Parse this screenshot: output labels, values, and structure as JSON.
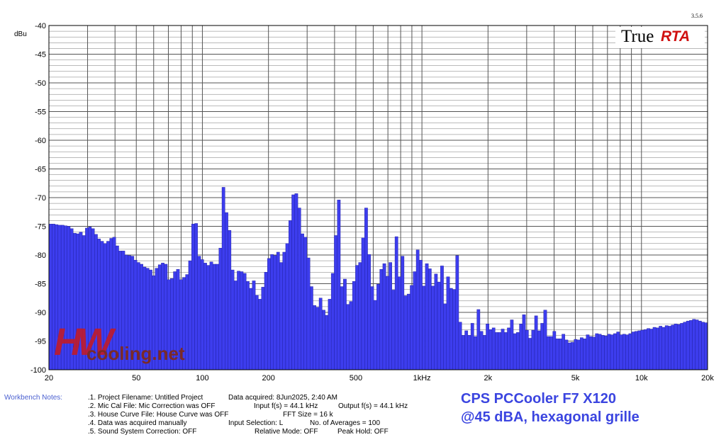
{
  "version": "3.5.6",
  "logo": {
    "part1": "True",
    "part2": "RTA"
  },
  "watermark": {
    "letters": "HW",
    "text": "cooling.net"
  },
  "workbench": {
    "label": "Workbench Notes:",
    "lines": [
      ".1. Project Filename: Untitled Project",
      ".2. Mic Cal File: Mic Correction was OFF",
      ".3. House Curve File: House Curve was OFF",
      ".4. Data was acquired manually",
      ".5. Sound System Correction: OFF"
    ],
    "col2": [
      "Data acquired: 8Jun2025, 2:40 AM",
      "Input f(s) = 44.1 kHz",
      "FFT Size = 16 k",
      "Input Selection: L",
      "Relative Mode:  OFF"
    ],
    "col3": [
      "",
      "Output f(s) = 44.1 kHz",
      "",
      "No. of Averages = 100",
      "Peak Hold:  OFF"
    ]
  },
  "caption": {
    "line1": "CPS PCCooler F7 X120",
    "line2": "@45 dBA, hexagonal grille"
  },
  "chart_data": {
    "type": "bar",
    "ylabel": "dBu",
    "x_scale": "log",
    "xlim": [
      20,
      20000
    ],
    "ylim": [
      -100,
      -40
    ],
    "y_ticks": [
      -40,
      -45,
      -50,
      -55,
      -60,
      -65,
      -70,
      -75,
      -80,
      -85,
      -90,
      -95,
      -100
    ],
    "x_ticks": [
      {
        "v": 20,
        "label": "20"
      },
      {
        "v": 50,
        "label": "50"
      },
      {
        "v": 100,
        "label": "100"
      },
      {
        "v": 200,
        "label": "200"
      },
      {
        "v": 500,
        "label": "500"
      },
      {
        "v": 1000,
        "label": "1kHz"
      },
      {
        "v": 2000,
        "label": "2k"
      },
      {
        "v": 5000,
        "label": "5k"
      },
      {
        "v": 10000,
        "label": "10k"
      },
      {
        "v": 20000,
        "label": "20k"
      }
    ],
    "grid": true,
    "bar_color": "#3d3dee",
    "bar_edge": "#1c1c96",
    "bands_per_octave": 24,
    "values": [
      -74.6,
      -74.6,
      -74.7,
      -74.8,
      -74.8,
      -74.9,
      -75.0,
      -75.4,
      -76.2,
      -76.3,
      -76.0,
      -76.6,
      -75.3,
      -75.1,
      -75.4,
      -76.4,
      -77.2,
      -77.6,
      -78.0,
      -77.6,
      -77.1,
      -76.9,
      -78.4,
      -79.3,
      -79.3,
      -80.0,
      -80.1,
      -80.2,
      -80.9,
      -81.3,
      -81.6,
      -82.1,
      -82.3,
      -82.6,
      -83.6,
      -82.3,
      -81.7,
      -81.4,
      -81.6,
      -84.3,
      -84.1,
      -82.9,
      -82.5,
      -84.3,
      -83.9,
      -83.4,
      -81.0,
      -74.6,
      -74.5,
      -80.2,
      -80.8,
      -81.4,
      -81.8,
      -81.2,
      -81.6,
      -81.6,
      -78.8,
      -68.2,
      -72.6,
      -75.7,
      -82.6,
      -84.5,
      -82.8,
      -82.9,
      -83.2,
      -84.6,
      -85.8,
      -84.5,
      -87.0,
      -87.7,
      -85.6,
      -83.0,
      -80.6,
      -79.9,
      -80.1,
      -79.5,
      -81.3,
      -79.5,
      -78.0,
      -74.0,
      -69.5,
      -69.3,
      -71.8,
      -76.3,
      -76.9,
      -80.5,
      -85.5,
      -88.8,
      -89.1,
      -87.5,
      -89.6,
      -90.5,
      -87.7,
      -83.2,
      -76.6,
      -70.4,
      -85.5,
      -84.2,
      -88.6,
      -88.1,
      -84.6,
      -81.8,
      -81.3,
      -77.0,
      -71.8,
      -79.9,
      -85.5,
      -87.9,
      -85.1,
      -82.5,
      -81.5,
      -83.7,
      -81.3,
      -86.1,
      -76.8,
      -83.8,
      -80.2,
      -87.1,
      -86.8,
      -85.3,
      -82.9,
      -79.1,
      -80.9,
      -85.4,
      -81.5,
      -82.4,
      -85.4,
      -83.3,
      -84.7,
      -81.9,
      -88.5,
      -83.8,
      -85.8,
      -86.0,
      -80.1,
      -91.7,
      -94.0,
      -93.2,
      -94.0,
      -91.9,
      -94.2,
      -89.5,
      -93.3,
      -94.0,
      -92.0,
      -93.0,
      -92.7,
      -93.5,
      -93.5,
      -92.9,
      -93.5,
      -92.7,
      -91.3,
      -93.7,
      -93.5,
      -92.0,
      -90.4,
      -93.1,
      -94.5,
      -93.1,
      -90.6,
      -93.2,
      -91.9,
      -89.6,
      -94.2,
      -94.2,
      -93.3,
      -94.6,
      -94.6,
      -93.8,
      -94.8,
      -95.3,
      -95.2,
      -94.7,
      -94.8,
      -94.4,
      -94.6,
      -93.9,
      -94.2,
      -94.3,
      -93.7,
      -93.8,
      -94.0,
      -94.1,
      -93.8,
      -93.9,
      -93.7,
      -93.4,
      -93.9,
      -93.8,
      -93.9,
      -93.7,
      -93.4,
      -93.3,
      -93.2,
      -93.1,
      -93.0,
      -92.8,
      -92.9,
      -92.6,
      -92.7,
      -92.4,
      -92.6,
      -92.3,
      -92.4,
      -92.2,
      -92.0,
      -92.1,
      -91.9,
      -91.7,
      -91.5,
      -91.4,
      -91.2,
      -91.3,
      -91.5,
      -91.7,
      -91.8
    ]
  }
}
